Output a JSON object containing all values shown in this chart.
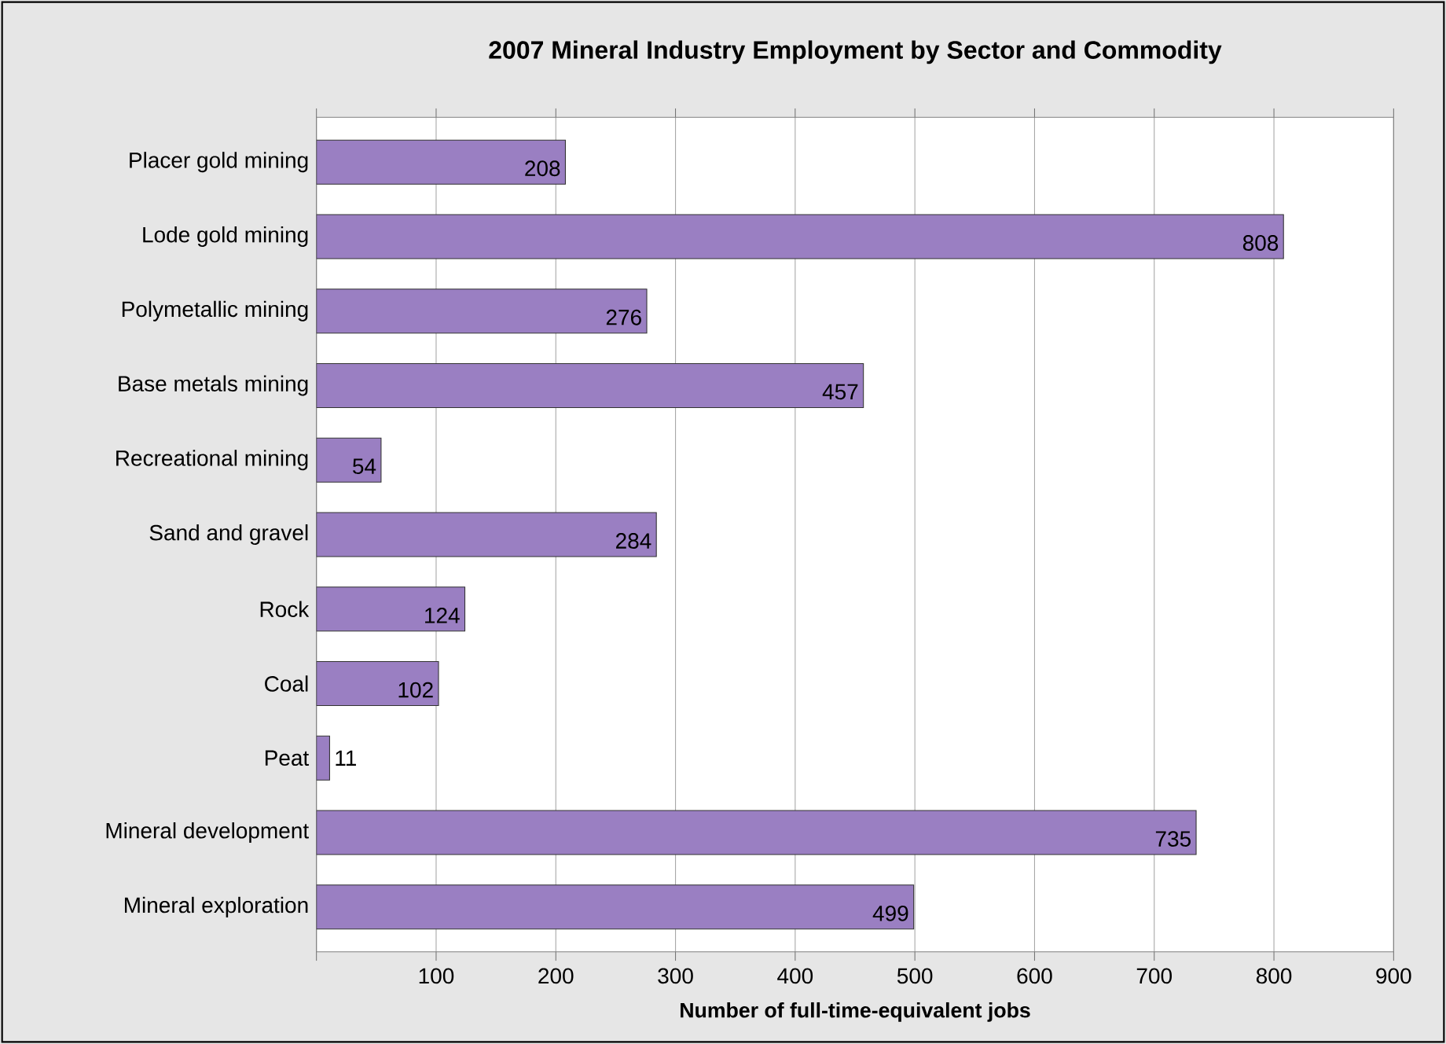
{
  "chart_data": {
    "type": "bar",
    "orientation": "horizontal",
    "title": "2007 Mineral Industry Employment by Sector and Commodity",
    "xlabel": "Number of full-time-equivalent jobs",
    "categories": [
      "Placer gold mining",
      "Lode gold mining",
      "Polymetallic mining",
      "Base metals mining",
      "Recreational mining",
      "Sand and gravel",
      "Rock",
      "Coal",
      "Peat",
      "Mineral development",
      "Mineral exploration"
    ],
    "values": [
      208,
      808,
      276,
      457,
      54,
      284,
      124,
      102,
      11,
      735,
      499
    ],
    "color": "#9a7fc2",
    "xlim": [
      0,
      900
    ],
    "xticks": [
      {
        "value": 0,
        "label": null
      },
      100,
      200,
      300,
      400,
      500,
      600,
      700,
      800,
      900
    ],
    "grid": "x",
    "data_labels": true
  }
}
